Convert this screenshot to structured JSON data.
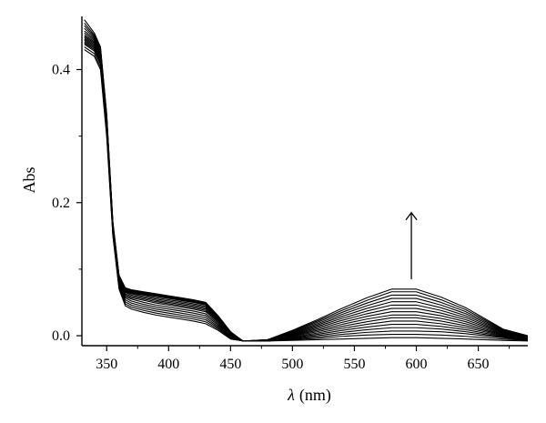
{
  "chart_data": {
    "type": "line",
    "xlabel_symbol": "λ",
    "xlabel_unit": "(nm)",
    "ylabel": "Abs",
    "xlim": [
      330,
      690
    ],
    "ylim": [
      -0.015,
      0.48
    ],
    "xticks": [
      350,
      400,
      450,
      500,
      550,
      600,
      650
    ],
    "yticks": [
      0.0,
      0.2,
      0.4
    ],
    "ytick_labels": [
      "0.0",
      "0.2",
      "0.4"
    ],
    "grid": false,
    "legend": "none",
    "line_color": "#000000",
    "annotation": {
      "type": "arrow",
      "direction": "up",
      "x_nm": 596,
      "y_from": 0.085,
      "y_to": 0.185
    },
    "series_count": 16,
    "series": [
      {
        "x": [
          332,
          340,
          345,
          350,
          355,
          360,
          365,
          370,
          380,
          390,
          400,
          410,
          420,
          430,
          440,
          450,
          460,
          480,
          500,
          520,
          540,
          560,
          580,
          600,
          620,
          640,
          655,
          670,
          690
        ],
        "values": [
          0.43,
          0.42,
          0.4,
          0.3,
          0.15,
          0.07,
          0.045,
          0.04,
          0.035,
          0.031,
          0.028,
          0.025,
          0.022,
          0.018,
          0.008,
          -0.005,
          -0.008,
          -0.008,
          -0.007,
          -0.006,
          -0.005,
          -0.004,
          -0.003,
          -0.003,
          -0.004,
          -0.005,
          -0.006,
          -0.007,
          -0.008
        ]
      },
      {
        "x": [
          332,
          340,
          345,
          350,
          355,
          360,
          365,
          370,
          380,
          390,
          400,
          410,
          420,
          430,
          440,
          450,
          460,
          480,
          500,
          520,
          540,
          560,
          580,
          600,
          620,
          640,
          655,
          670,
          690
        ],
        "values": [
          0.434,
          0.424,
          0.404,
          0.304,
          0.152,
          0.072,
          0.048,
          0.043,
          0.038,
          0.034,
          0.031,
          0.028,
          0.025,
          0.021,
          0.01,
          -0.004,
          -0.008,
          -0.008,
          -0.006,
          -0.004,
          -0.001,
          0.001,
          0.002,
          0.002,
          0.001,
          -0.001,
          -0.003,
          -0.005,
          -0.007
        ]
      },
      {
        "x": [
          332,
          340,
          345,
          350,
          355,
          360,
          365,
          370,
          380,
          390,
          400,
          410,
          420,
          430,
          440,
          450,
          460,
          480,
          500,
          520,
          540,
          560,
          580,
          600,
          620,
          640,
          655,
          670,
          690
        ],
        "values": [
          0.438,
          0.428,
          0.408,
          0.308,
          0.154,
          0.074,
          0.051,
          0.046,
          0.041,
          0.037,
          0.034,
          0.031,
          0.028,
          0.024,
          0.012,
          -0.003,
          -0.008,
          -0.008,
          -0.005,
          -0.002,
          0.002,
          0.005,
          0.007,
          0.007,
          0.006,
          0.003,
          0.0,
          -0.003,
          -0.007
        ]
      },
      {
        "x": [
          332,
          340,
          345,
          350,
          355,
          360,
          365,
          370,
          380,
          390,
          400,
          410,
          420,
          430,
          440,
          450,
          460,
          480,
          500,
          520,
          540,
          560,
          580,
          600,
          620,
          640,
          655,
          670,
          690
        ],
        "values": [
          0.44,
          0.43,
          0.41,
          0.31,
          0.156,
          0.076,
          0.054,
          0.049,
          0.044,
          0.04,
          0.037,
          0.034,
          0.031,
          0.027,
          0.014,
          -0.002,
          -0.008,
          -0.008,
          -0.004,
          0.0,
          0.005,
          0.009,
          0.012,
          0.012,
          0.01,
          0.006,
          0.002,
          -0.002,
          -0.006
        ]
      },
      {
        "x": [
          332,
          340,
          345,
          350,
          355,
          360,
          365,
          370,
          380,
          390,
          400,
          410,
          420,
          430,
          440,
          450,
          460,
          480,
          500,
          520,
          540,
          560,
          580,
          600,
          620,
          640,
          655,
          670,
          690
        ],
        "values": [
          0.442,
          0.432,
          0.412,
          0.312,
          0.158,
          0.078,
          0.057,
          0.052,
          0.047,
          0.043,
          0.04,
          0.037,
          0.034,
          0.03,
          0.016,
          -0.001,
          -0.008,
          -0.008,
          -0.003,
          0.002,
          0.008,
          0.013,
          0.017,
          0.017,
          0.014,
          0.009,
          0.004,
          -0.001,
          -0.006
        ]
      },
      {
        "x": [
          332,
          340,
          345,
          350,
          355,
          360,
          365,
          370,
          380,
          390,
          400,
          410,
          420,
          430,
          440,
          450,
          460,
          480,
          500,
          520,
          540,
          560,
          580,
          600,
          620,
          640,
          655,
          670,
          690
        ],
        "values": [
          0.444,
          0.434,
          0.414,
          0.314,
          0.16,
          0.08,
          0.059,
          0.055,
          0.05,
          0.046,
          0.043,
          0.04,
          0.037,
          0.033,
          0.018,
          0.0,
          -0.008,
          -0.008,
          -0.002,
          0.004,
          0.011,
          0.017,
          0.022,
          0.022,
          0.018,
          0.012,
          0.006,
          0.0,
          -0.005
        ]
      },
      {
        "x": [
          332,
          340,
          345,
          350,
          355,
          360,
          365,
          370,
          380,
          390,
          400,
          410,
          420,
          430,
          440,
          450,
          460,
          480,
          500,
          520,
          540,
          560,
          580,
          600,
          620,
          640,
          655,
          670,
          690
        ],
        "values": [
          0.446,
          0.436,
          0.416,
          0.316,
          0.162,
          0.082,
          0.061,
          0.057,
          0.053,
          0.049,
          0.046,
          0.043,
          0.04,
          0.036,
          0.02,
          0.001,
          -0.008,
          -0.008,
          -0.001,
          0.006,
          0.014,
          0.021,
          0.027,
          0.027,
          0.022,
          0.015,
          0.008,
          0.001,
          -0.005
        ]
      },
      {
        "x": [
          332,
          340,
          345,
          350,
          355,
          360,
          365,
          370,
          380,
          390,
          400,
          410,
          420,
          430,
          440,
          450,
          460,
          480,
          500,
          520,
          540,
          560,
          580,
          600,
          620,
          640,
          655,
          670,
          690
        ],
        "values": [
          0.448,
          0.438,
          0.418,
          0.318,
          0.163,
          0.083,
          0.063,
          0.059,
          0.055,
          0.051,
          0.048,
          0.045,
          0.042,
          0.038,
          0.022,
          0.002,
          -0.008,
          -0.007,
          0.0,
          0.008,
          0.017,
          0.025,
          0.031,
          0.031,
          0.026,
          0.018,
          0.01,
          0.002,
          -0.004
        ]
      },
      {
        "x": [
          332,
          340,
          345,
          350,
          355,
          360,
          365,
          370,
          380,
          390,
          400,
          410,
          420,
          430,
          440,
          450,
          460,
          480,
          500,
          520,
          540,
          560,
          580,
          600,
          620,
          640,
          655,
          670,
          690
        ],
        "values": [
          0.45,
          0.44,
          0.42,
          0.32,
          0.164,
          0.084,
          0.065,
          0.061,
          0.057,
          0.053,
          0.05,
          0.047,
          0.044,
          0.04,
          0.023,
          0.003,
          -0.008,
          -0.007,
          0.001,
          0.01,
          0.02,
          0.029,
          0.036,
          0.036,
          0.03,
          0.021,
          0.012,
          0.003,
          -0.004
        ]
      },
      {
        "x": [
          332,
          340,
          345,
          350,
          355,
          360,
          365,
          370,
          380,
          390,
          400,
          410,
          420,
          430,
          440,
          450,
          460,
          480,
          500,
          520,
          540,
          560,
          580,
          600,
          620,
          640,
          655,
          670,
          690
        ],
        "values": [
          0.452,
          0.442,
          0.422,
          0.322,
          0.165,
          0.085,
          0.066,
          0.063,
          0.059,
          0.055,
          0.052,
          0.049,
          0.046,
          0.042,
          0.024,
          0.003,
          -0.008,
          -0.007,
          0.002,
          0.012,
          0.023,
          0.033,
          0.041,
          0.041,
          0.034,
          0.024,
          0.014,
          0.004,
          -0.003
        ]
      },
      {
        "x": [
          332,
          340,
          345,
          350,
          355,
          360,
          365,
          370,
          380,
          390,
          400,
          410,
          420,
          430,
          440,
          450,
          460,
          480,
          500,
          520,
          540,
          560,
          580,
          600,
          620,
          640,
          655,
          670,
          690
        ],
        "values": [
          0.455,
          0.444,
          0.424,
          0.324,
          0.166,
          0.086,
          0.067,
          0.064,
          0.061,
          0.057,
          0.054,
          0.051,
          0.048,
          0.044,
          0.025,
          0.004,
          -0.008,
          -0.007,
          0.003,
          0.014,
          0.026,
          0.037,
          0.046,
          0.046,
          0.038,
          0.027,
          0.016,
          0.005,
          -0.003
        ]
      },
      {
        "x": [
          332,
          340,
          345,
          350,
          355,
          360,
          365,
          370,
          380,
          390,
          400,
          410,
          420,
          430,
          440,
          450,
          460,
          480,
          500,
          520,
          540,
          560,
          580,
          600,
          620,
          640,
          655,
          670,
          690
        ],
        "values": [
          0.458,
          0.446,
          0.426,
          0.326,
          0.167,
          0.087,
          0.068,
          0.065,
          0.062,
          0.059,
          0.056,
          0.053,
          0.05,
          0.046,
          0.026,
          0.004,
          -0.008,
          -0.007,
          0.004,
          0.016,
          0.029,
          0.041,
          0.051,
          0.051,
          0.042,
          0.03,
          0.018,
          0.006,
          -0.002
        ]
      },
      {
        "x": [
          332,
          340,
          345,
          350,
          355,
          360,
          365,
          370,
          380,
          390,
          400,
          410,
          420,
          430,
          440,
          450,
          460,
          480,
          500,
          520,
          540,
          560,
          580,
          600,
          620,
          640,
          655,
          670,
          690
        ],
        "values": [
          0.462,
          0.448,
          0.428,
          0.328,
          0.168,
          0.088,
          0.069,
          0.066,
          0.063,
          0.06,
          0.057,
          0.054,
          0.051,
          0.047,
          0.027,
          0.005,
          -0.008,
          -0.007,
          0.005,
          0.018,
          0.032,
          0.045,
          0.056,
          0.056,
          0.046,
          0.033,
          0.02,
          0.007,
          -0.002
        ]
      },
      {
        "x": [
          332,
          340,
          345,
          350,
          355,
          360,
          365,
          370,
          380,
          390,
          400,
          410,
          420,
          430,
          440,
          450,
          460,
          480,
          500,
          520,
          540,
          560,
          580,
          600,
          620,
          640,
          655,
          670,
          690
        ],
        "values": [
          0.466,
          0.45,
          0.43,
          0.33,
          0.169,
          0.089,
          0.07,
          0.067,
          0.064,
          0.061,
          0.058,
          0.055,
          0.052,
          0.048,
          0.028,
          0.005,
          -0.008,
          -0.006,
          0.006,
          0.02,
          0.035,
          0.049,
          0.061,
          0.061,
          0.05,
          0.036,
          0.022,
          0.008,
          -0.001
        ]
      },
      {
        "x": [
          332,
          340,
          345,
          350,
          355,
          360,
          365,
          370,
          380,
          390,
          400,
          410,
          420,
          430,
          440,
          450,
          460,
          480,
          500,
          520,
          540,
          560,
          580,
          600,
          620,
          640,
          655,
          670,
          690
        ],
        "values": [
          0.47,
          0.452,
          0.432,
          0.332,
          0.17,
          0.09,
          0.071,
          0.068,
          0.065,
          0.062,
          0.059,
          0.056,
          0.053,
          0.049,
          0.029,
          0.006,
          -0.008,
          -0.006,
          0.007,
          0.022,
          0.038,
          0.053,
          0.066,
          0.066,
          0.054,
          0.039,
          0.024,
          0.009,
          -0.001
        ]
      },
      {
        "x": [
          332,
          340,
          345,
          350,
          355,
          360,
          365,
          370,
          380,
          390,
          400,
          410,
          420,
          430,
          440,
          450,
          460,
          480,
          500,
          520,
          540,
          560,
          580,
          600,
          620,
          640,
          655,
          670,
          690
        ],
        "values": [
          0.475,
          0.455,
          0.434,
          0.334,
          0.171,
          0.091,
          0.072,
          0.069,
          0.066,
          0.063,
          0.06,
          0.057,
          0.054,
          0.05,
          0.03,
          0.006,
          -0.008,
          -0.006,
          0.008,
          0.024,
          0.041,
          0.057,
          0.07,
          0.07,
          0.058,
          0.042,
          0.026,
          0.01,
          0.0
        ]
      }
    ]
  }
}
